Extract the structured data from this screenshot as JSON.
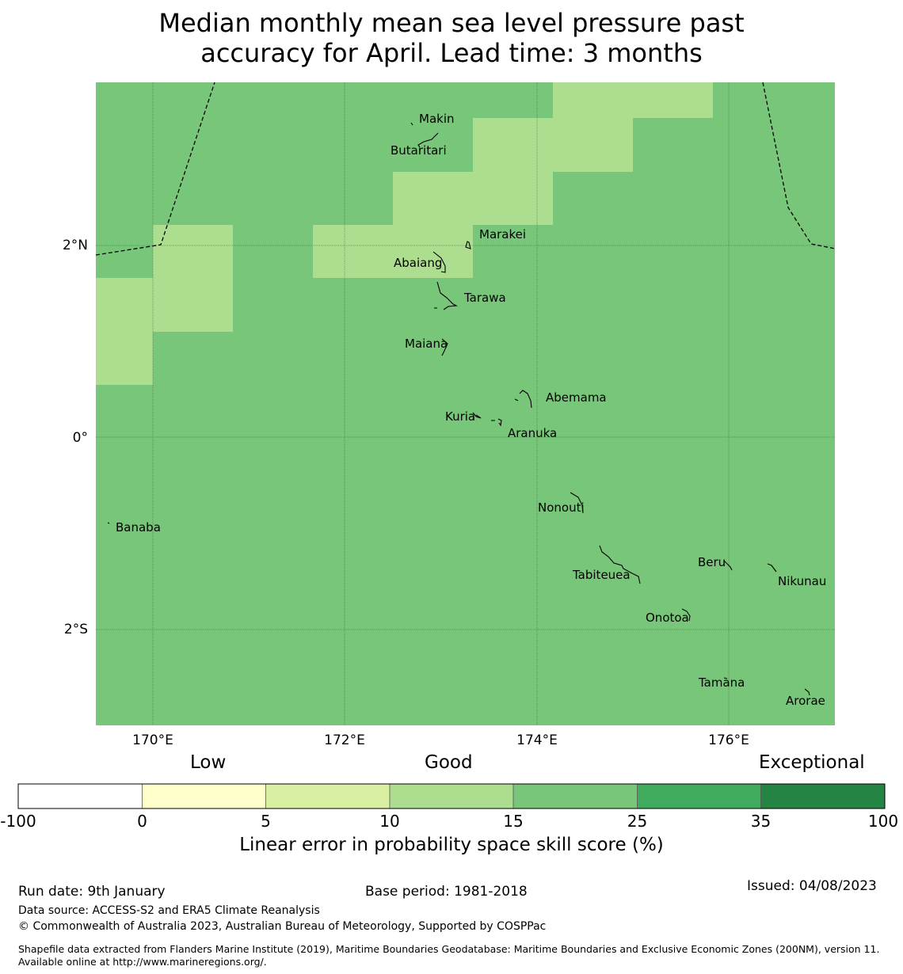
{
  "title_line1": "Median monthly mean sea level pressure past",
  "title_line2": "accuracy for April. Lead time: 3 months",
  "map": {
    "lon_ticks": [
      "170°E",
      "172°E",
      "174°E",
      "176°E"
    ],
    "lat_ticks": [
      "2°N",
      "0°",
      "2°S"
    ],
    "colors": {
      "base": "#78c679",
      "light": "#addd8e"
    },
    "islands": [
      "Makin",
      "Butaritari",
      "Marakei",
      "Abaiang",
      "Tarawa",
      "Maiana",
      "Abemama",
      "Kuria",
      "Aranuka",
      "Banaba",
      "Nonouti",
      "Beru",
      "Tabiteuea",
      "Nikunau",
      "Onotoa",
      "Tamana",
      "Arorae"
    ]
  },
  "colorbar": {
    "categories": [
      "Low",
      "Good",
      "Exceptional"
    ],
    "ticks": [
      "-100",
      "0",
      "5",
      "10",
      "15",
      "25",
      "35",
      "100"
    ],
    "colors": [
      "#ffffff",
      "#ffffcc",
      "#d9f0a3",
      "#addd8e",
      "#78c679",
      "#41ab5d",
      "#238443"
    ],
    "label": "Linear error in probability space skill score (%)"
  },
  "footer": {
    "run_date": "Run date: 9th January",
    "base_period": "Base period: 1981-2018",
    "issued": "Issued: 04/08/2023",
    "data_source": "Data source: ACCESS-S2 and ERA5 Climate Reanalysis",
    "copyright": "© Commonwealth of Australia 2023, Australian Bureau of Meteorology, Supported by COSPPac",
    "shapefile": "Shapefile data extracted from Flanders Marine Institute (2019), Maritime Boundaries Geodatabase: Maritime Boundaries and Exclusive Economic Zones (200NM), version 11. Available online at http://www.marineregions.org/."
  }
}
